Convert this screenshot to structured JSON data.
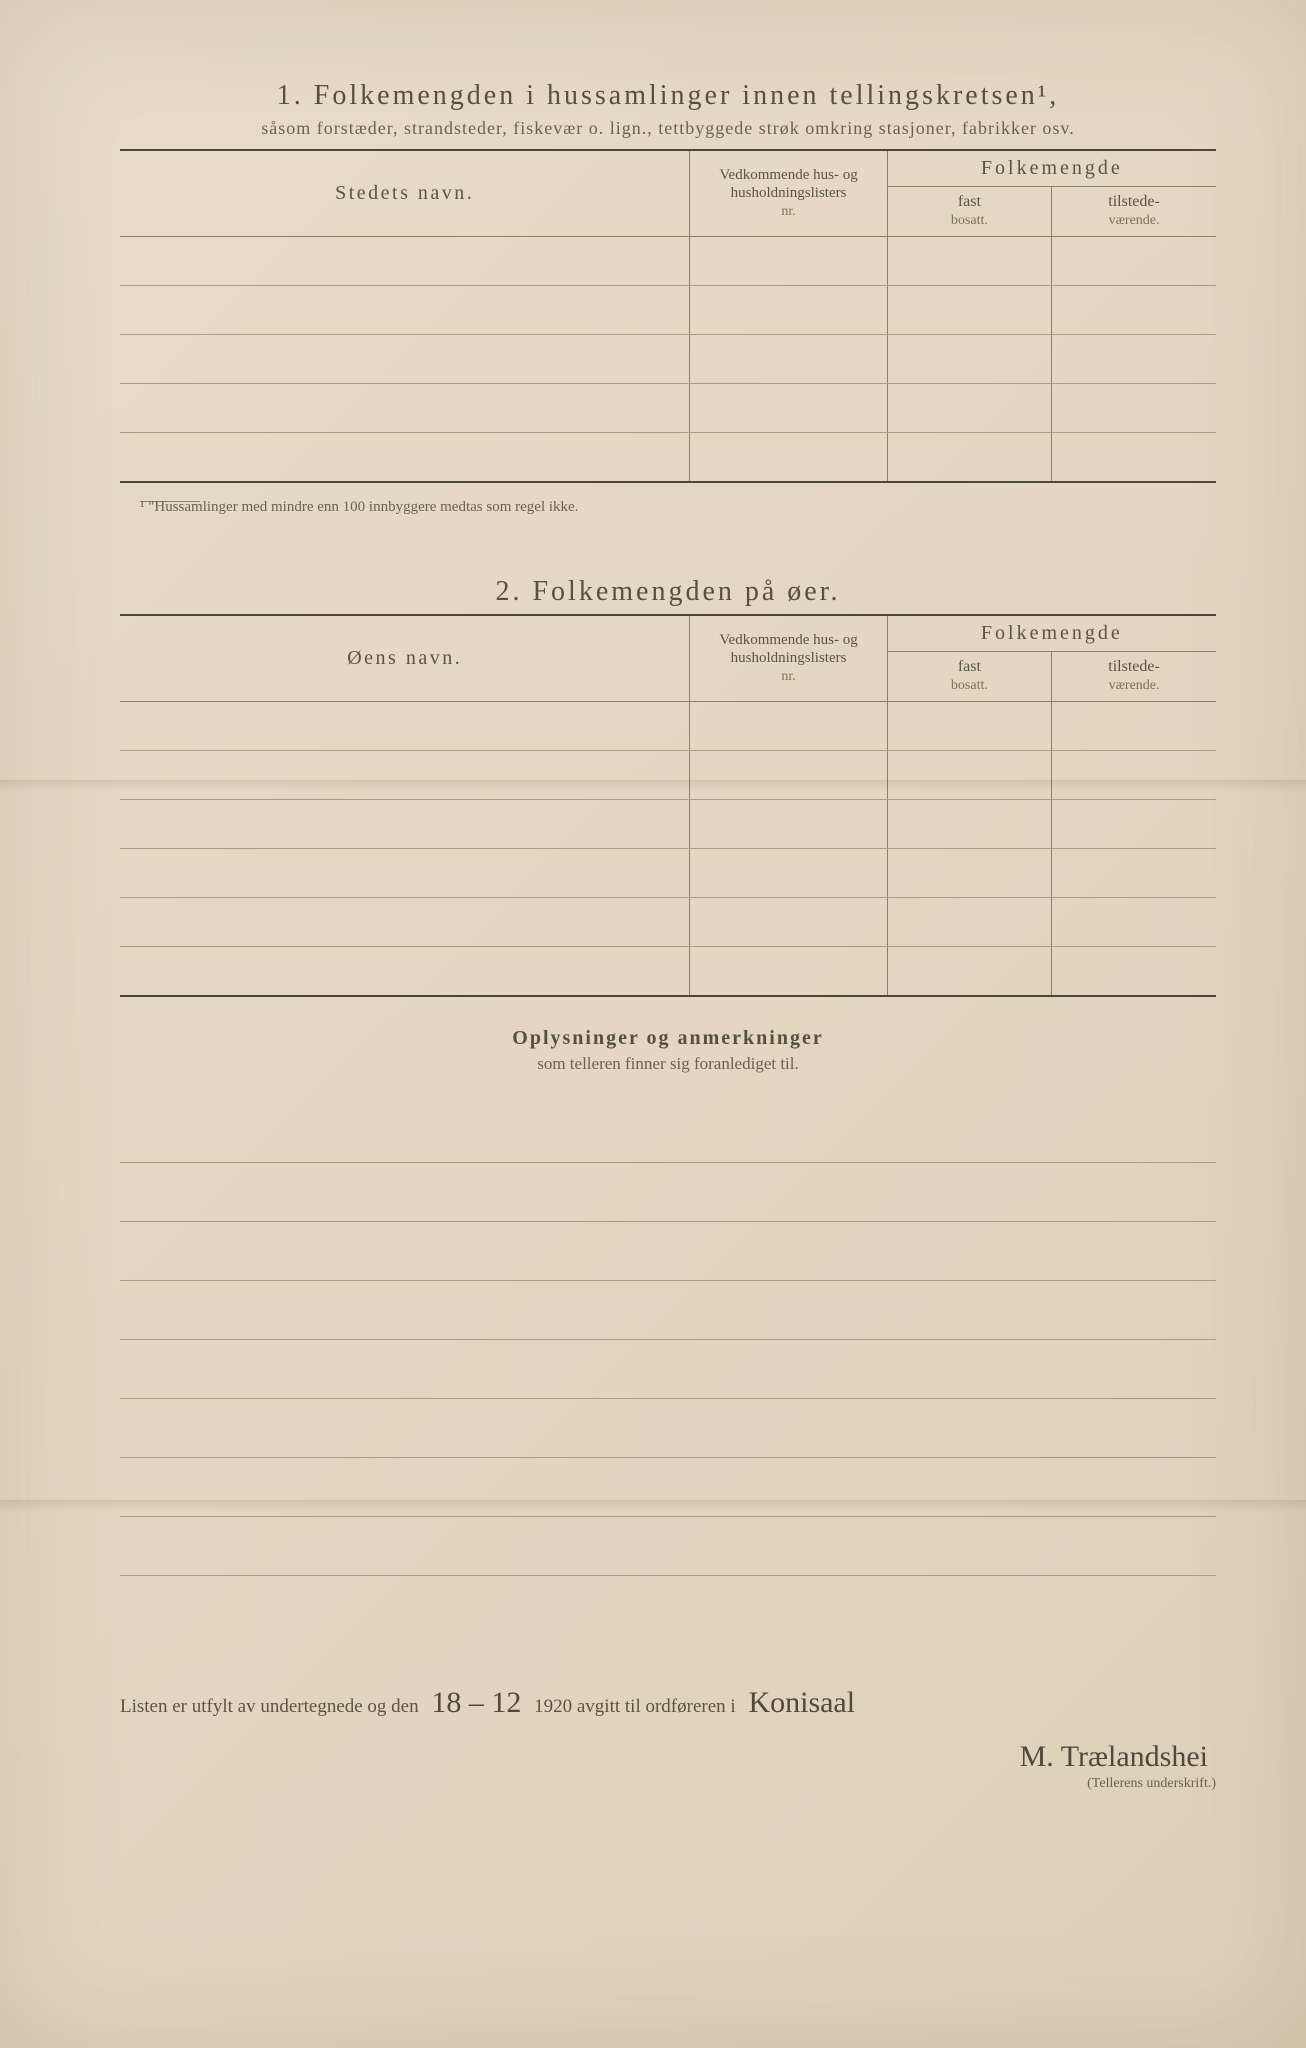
{
  "section1": {
    "number": "1.",
    "title": "Folkemengden i hussamlinger innen tellingskretsen¹,",
    "subtitle": "såsom forstæder, strandsteder, fiskevær o. lign., tettbyggede strøk omkring stasjoner, fabrikker osv.",
    "col_name": "Stedets navn.",
    "col_lists_l1": "Vedkommende hus- og",
    "col_lists_l2": "husholdningslisters",
    "col_lists_l3": "nr.",
    "col_pop": "Folkemengde",
    "col_fast_l1": "fast",
    "col_fast_l2": "bosatt.",
    "col_tilst_l1": "tilstede-",
    "col_tilst_l2": "værende.",
    "row_count": 5,
    "footnote": "¹ \"Hussamlinger med mindre enn 100 innbyggere medtas som regel ikke."
  },
  "section2": {
    "number": "2.",
    "title": "Folkemengden på øer.",
    "col_name": "Øens navn.",
    "col_lists_l1": "Vedkommende hus- og",
    "col_lists_l2": "husholdningslisters",
    "col_lists_l3": "nr.",
    "col_pop": "Folkemengde",
    "col_fast_l1": "fast",
    "col_fast_l2": "bosatt.",
    "col_tilst_l1": "tilstede-",
    "col_tilst_l2": "værende.",
    "row_count": 6
  },
  "notes": {
    "title": "Oplysninger og anmerkninger",
    "subtitle": "som telleren finner sig foranlediget til.",
    "line_count": 8
  },
  "bottom": {
    "text_before_date": "Listen er utfylt av undertegnede og den",
    "date_handwritten": "18 – 12",
    "text_year": "1920 avgitt til ordføreren i",
    "place_handwritten": "Konisaal",
    "signature": "M. Trælandshei",
    "sig_caption": "(Tellerens underskrift.)"
  },
  "colors": {
    "paper": "#e4d6c0",
    "ink": "#4a4638",
    "rule": "#a89c80"
  }
}
